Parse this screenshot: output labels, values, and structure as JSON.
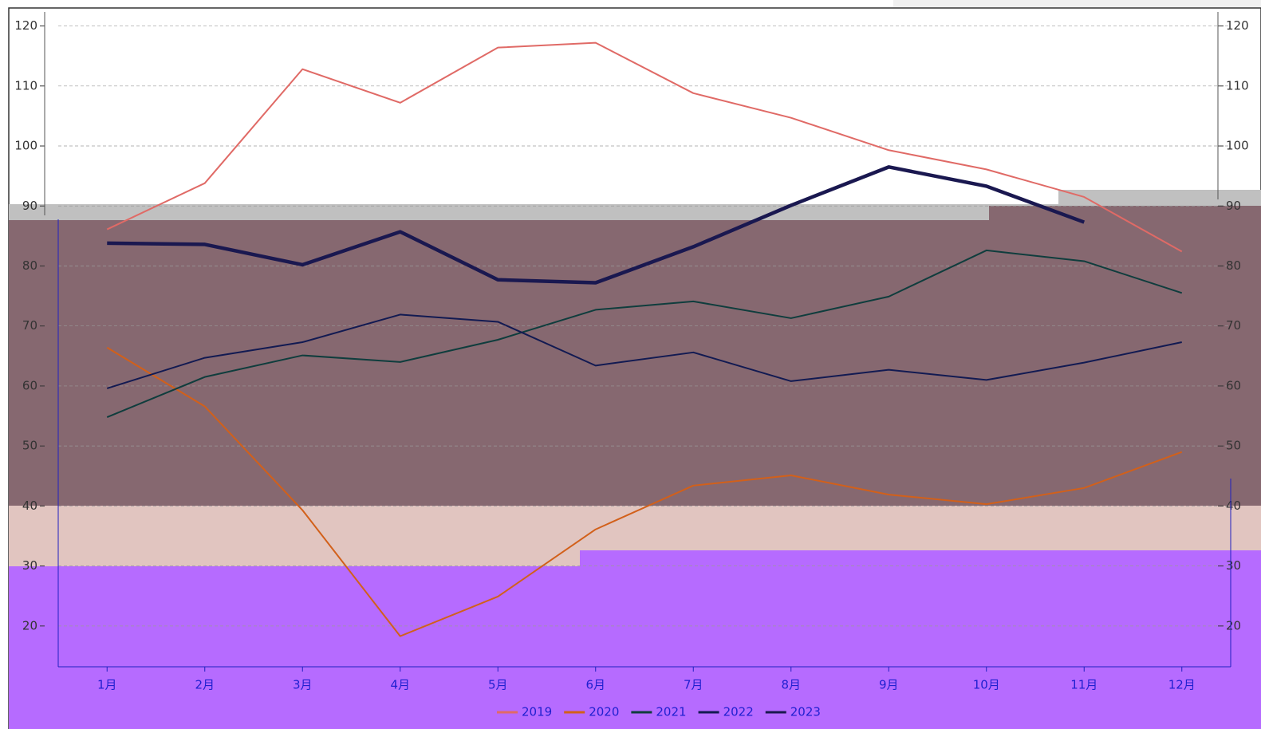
{
  "chart_data": {
    "type": "line",
    "categories": [
      "1月",
      "2月",
      "3月",
      "4月",
      "5月",
      "6月",
      "7月",
      "8月",
      "9月",
      "10月",
      "11月",
      "12月"
    ],
    "series": [
      {
        "name": "2019",
        "color": "#e06a66",
        "values": [
          86.1,
          93.8,
          112.8,
          107.2,
          116.4,
          117.2,
          108.8,
          104.7,
          99.3,
          96.1,
          91.5,
          82.4
        ]
      },
      {
        "name": "2020",
        "color": "#d2601a",
        "values": [
          66.4,
          56.6,
          39.3,
          18.3,
          24.9,
          36.1,
          43.4,
          45.1,
          41.9,
          40.3,
          43.0,
          49.0
        ]
      },
      {
        "name": "2021",
        "color": "#0f3d3d",
        "values": [
          54.8,
          61.5,
          65.1,
          64.0,
          67.7,
          72.7,
          74.1,
          71.3,
          74.9,
          82.6,
          80.8,
          75.5
        ]
      },
      {
        "name": "2022",
        "color": "#121a52",
        "values": [
          59.6,
          64.7,
          67.3,
          71.9,
          70.7,
          63.4,
          65.6,
          60.8,
          62.7,
          61.0,
          63.9,
          67.3
        ]
      },
      {
        "name": "2023",
        "color": "#1a1850",
        "values": [
          83.8,
          83.6,
          80.2,
          85.7,
          77.7,
          77.2,
          83.2,
          90.1,
          96.5,
          93.3,
          87.3,
          null
        ]
      }
    ],
    "ylim": [
      13.2,
      123
    ],
    "yticks": [
      20,
      30,
      40,
      50,
      60,
      70,
      80,
      90,
      100,
      110,
      120
    ],
    "grid": true
  }
}
